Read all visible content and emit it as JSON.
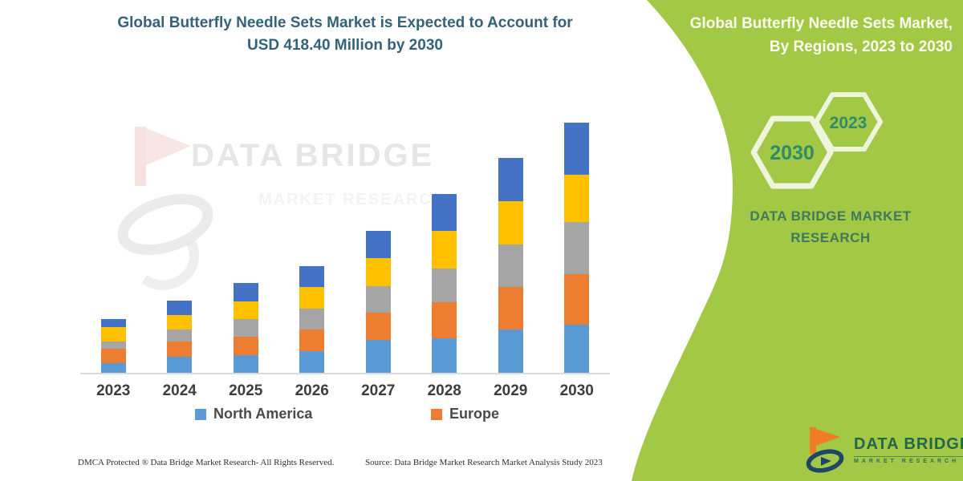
{
  "header": {
    "title_line1": "Global Butterfly Needle Sets Market is Expected to Account for",
    "title_line2": "USD 418.40 Million by 2030"
  },
  "watermark": {
    "line1": "DATA BRIDGE",
    "line2": "MARKET RESEARCH"
  },
  "chart_data": {
    "type": "bar",
    "stacked": true,
    "title": "Global Butterfly Needle Sets Market is Expected to Account for USD 418.40 Million by 2030",
    "unit": "USD Million",
    "categories": [
      "2023",
      "2024",
      "2025",
      "2026",
      "2027",
      "2028",
      "2029",
      "2030"
    ],
    "series": [
      {
        "name": "North America",
        "color": "#5B9BD5",
        "values": [
          16,
          27,
          30,
          36,
          55,
          58,
          72,
          81
        ]
      },
      {
        "name": "Europe",
        "color": "#ED7D31",
        "values": [
          24,
          25,
          30,
          37,
          46,
          60,
          72,
          84
        ]
      },
      {
        "name": "",
        "color": "#A5A5A5",
        "values": [
          12,
          20,
          30,
          34,
          44,
          56,
          71,
          87
        ]
      },
      {
        "name": "",
        "color": "#FFC000",
        "values": [
          24,
          25,
          30,
          36,
          47,
          64,
          72,
          80
        ]
      },
      {
        "name": "",
        "color": "#4472C4",
        "values": [
          14,
          24,
          30,
          35,
          46,
          61,
          72,
          86
        ]
      }
    ],
    "legend": [
      {
        "label": "North America",
        "color": "#5B9BD5"
      },
      {
        "label": "Europe",
        "color": "#ED7D31"
      }
    ],
    "legend_position": "bottom",
    "xlabel": "",
    "ylabel": "",
    "ylim": [
      0,
      436
    ],
    "grid": false,
    "y_axis": "hidden",
    "totals_by_year": [
      90,
      121,
      150,
      178,
      238,
      299,
      359,
      418
    ]
  },
  "footer": {
    "left": "DMCA Protected ® Data Bridge Market Research- All Rights Reserved.",
    "right": "Source: Data Bridge Market Research Market Analysis Study 2023"
  },
  "side_panel": {
    "bg_color": "#A2C845",
    "heading_line1": "Global Butterfly Needle Sets Market,",
    "heading_line2": "By Regions, 2023 to 2030",
    "hex_large_label": "2030",
    "hex_small_label": "2023",
    "brand_line1": "DATA BRIDGE MARKET",
    "brand_line2": "RESEARCH",
    "logo": {
      "name": "DATA BRIDGE",
      "sub": "MARKET RESEARCH"
    }
  }
}
